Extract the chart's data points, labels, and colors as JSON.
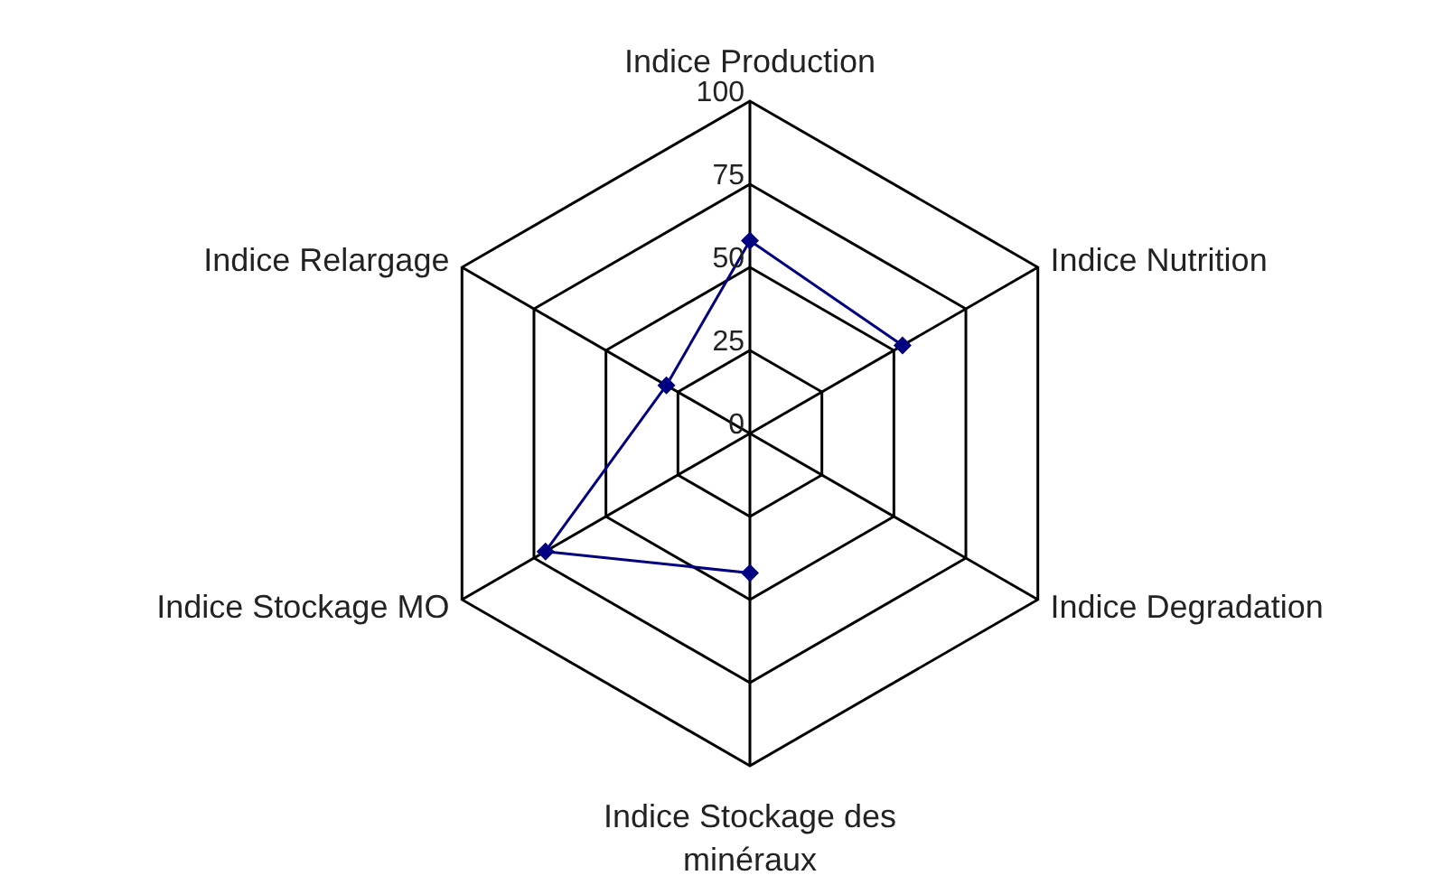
{
  "chart_data": {
    "type": "radar",
    "categories": [
      "Indice Production",
      "Indice Nutrition",
      "Indice Degradation",
      "Indice Stockage des minéraux",
      "Indice Stockage MO",
      "Indice Relargage"
    ],
    "series": [
      {
        "color": "#000080",
        "values": [
          58,
          53,
          null,
          42,
          71,
          29
        ]
      }
    ],
    "ylim": [
      0,
      100
    ],
    "yticks": [
      0,
      25,
      50,
      75,
      100
    ],
    "grid": true,
    "legend": false,
    "marker": "diamond",
    "line_style": "solid"
  }
}
